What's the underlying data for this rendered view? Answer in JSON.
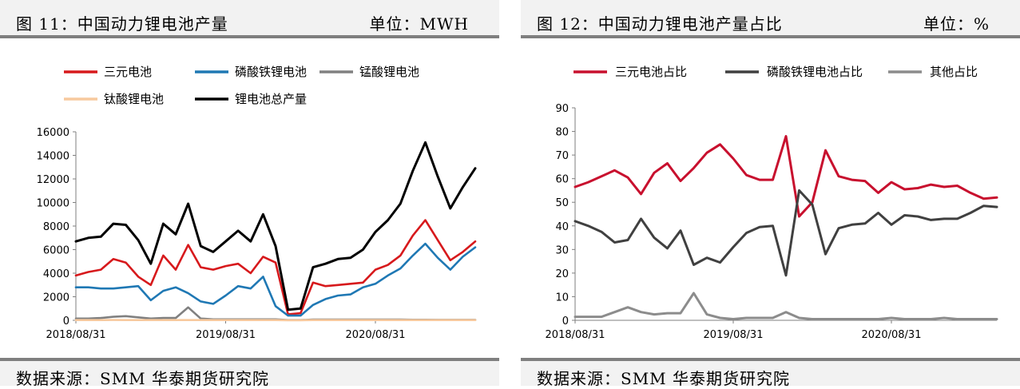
{
  "charts": [
    {
      "title": "图 11：中国动力锂电池产量",
      "unit": "单位：MWH",
      "source": "数据来源：SMM  华泰期货研究院",
      "chart_data": {
        "type": "line",
        "x": [
          "2018/08",
          "2018/09",
          "2018/10",
          "2018/11",
          "2018/12",
          "2019/01",
          "2019/02",
          "2019/03",
          "2019/04",
          "2019/05",
          "2019/06",
          "2019/07",
          "2019/08",
          "2019/09",
          "2019/10",
          "2019/11",
          "2019/12",
          "2020/01",
          "2020/02",
          "2020/03",
          "2020/04",
          "2020/05",
          "2020/06",
          "2020/07",
          "2020/08",
          "2020/09",
          "2020/10",
          "2020/11",
          "2020/12",
          "2021/01",
          "2021/02",
          "2021/03",
          "2021/04"
        ],
        "x_tick_labels": [
          "2018/08/31",
          "2019/08/31",
          "2020/08/31"
        ],
        "x_tick_indices": [
          0,
          12,
          24
        ],
        "ylim": [
          0,
          16000
        ],
        "yticks": [
          0,
          2000,
          4000,
          6000,
          8000,
          10000,
          12000,
          14000,
          16000
        ],
        "legend_rows": [
          [
            0,
            1,
            2
          ],
          [
            3,
            4
          ]
        ],
        "series": [
          {
            "name": "三元电池",
            "color": "#d7191c",
            "width": 2.6,
            "values": [
              3800,
              4100,
              4300,
              5200,
              4900,
              3700,
              3000,
              5500,
              4300,
              6400,
              4500,
              4300,
              4600,
              4800,
              4000,
              5400,
              4900,
              500,
              600,
              3200,
              2900,
              3000,
              3100,
              3200,
              4300,
              4700,
              5500,
              7200,
              8500,
              6800,
              5100,
              5800,
              6700
            ]
          },
          {
            "name": "磷酸铁锂电池",
            "color": "#1f78b4",
            "width": 2.6,
            "values": [
              2800,
              2800,
              2700,
              2700,
              2800,
              2900,
              1700,
              2500,
              2800,
              2300,
              1600,
              1400,
              2100,
              2900,
              2700,
              3700,
              1200,
              400,
              400,
              1300,
              1800,
              2100,
              2200,
              2800,
              3100,
              3800,
              4400,
              5500,
              6500,
              5300,
              4300,
              5400,
              6200
            ]
          },
          {
            "name": "锰酸锂电池",
            "color": "#808080",
            "width": 2.6,
            "values": [
              150,
              150,
              200,
              300,
              350,
              250,
              150,
              200,
              200,
              1100,
              150,
              80,
              80,
              80,
              80,
              80,
              80,
              20,
              20,
              60,
              60,
              60,
              60,
              60,
              60,
              60,
              60,
              50,
              50,
              40,
              40,
              40,
              40
            ]
          },
          {
            "name": "钛酸锂电池",
            "color": "#f7c99e",
            "width": 2.6,
            "values": [
              20,
              20,
              20,
              30,
              20,
              20,
              20,
              20,
              20,
              20,
              20,
              20,
              20,
              20,
              20,
              20,
              20,
              10,
              10,
              20,
              20,
              20,
              20,
              20,
              20,
              20,
              20,
              20,
              20,
              20,
              20,
              20,
              20
            ]
          },
          {
            "name": "锂电池总产量",
            "color": "#000000",
            "width": 3,
            "values": [
              6700,
              7000,
              7100,
              8200,
              8100,
              6800,
              4800,
              8200,
              7300,
              9900,
              6300,
              5800,
              6700,
              7600,
              6700,
              9000,
              6300,
              900,
              1000,
              4500,
              4800,
              5200,
              5300,
              6000,
              7500,
              8500,
              9900,
              12700,
              15100,
              12200,
              9500,
              11300,
              12900
            ]
          }
        ]
      }
    },
    {
      "title": "图 12：中国动力锂电池产量占比",
      "unit": "单位：%",
      "source": "数据来源：SMM  华泰期货研究院",
      "chart_data": {
        "type": "line",
        "x": [
          "2018/08",
          "2018/09",
          "2018/10",
          "2018/11",
          "2018/12",
          "2019/01",
          "2019/02",
          "2019/03",
          "2019/04",
          "2019/05",
          "2019/06",
          "2019/07",
          "2019/08",
          "2019/09",
          "2019/10",
          "2019/11",
          "2019/12",
          "2020/01",
          "2020/02",
          "2020/03",
          "2020/04",
          "2020/05",
          "2020/06",
          "2020/07",
          "2020/08",
          "2020/09",
          "2020/10",
          "2020/11",
          "2020/12",
          "2021/01",
          "2021/02",
          "2021/03",
          "2021/04"
        ],
        "x_tick_labels": [
          "2018/08/31",
          "2019/08/31",
          "2020/08/31"
        ],
        "x_tick_indices": [
          0,
          12,
          24
        ],
        "ylim": [
          0,
          90
        ],
        "yticks": [
          0,
          10,
          20,
          30,
          40,
          50,
          60,
          70,
          80,
          90
        ],
        "legend_rows": [
          [
            0,
            1,
            2
          ]
        ],
        "series": [
          {
            "name": "三元电池占比",
            "color": "#c8102e",
            "width": 3,
            "values": [
              56.5,
              58.5,
              61,
              63.5,
              60.5,
              53.5,
              62.5,
              66.5,
              59,
              64.5,
              71,
              74.5,
              68.5,
              61.5,
              59.5,
              59.5,
              78,
              44,
              50,
              72,
              61,
              59.5,
              59,
              54,
              58.5,
              55.5,
              56,
              57.5,
              56.5,
              57,
              54,
              51.5,
              52
            ]
          },
          {
            "name": "磷酸铁锂电池占比",
            "color": "#404040",
            "width": 3,
            "values": [
              42,
              40,
              37.5,
              33,
              34,
              43,
              35,
              30.5,
              38,
              23.5,
              26.5,
              24.5,
              31,
              37,
              39.5,
              40,
              19,
              55,
              49,
              28,
              39,
              40.5,
              41,
              45.5,
              40.5,
              44.5,
              44,
              42.5,
              43,
              43,
              45.5,
              48.5,
              48
            ]
          },
          {
            "name": "其他占比",
            "color": "#8c8c8c",
            "width": 3,
            "values": [
              1.5,
              1.5,
              1.5,
              3.5,
              5.5,
              3.5,
              2.5,
              3,
              3,
              11.5,
              2.5,
              1,
              0.5,
              1,
              1,
              1,
              3.5,
              1,
              0.5,
              0.5,
              0.5,
              0.5,
              0.5,
              0.5,
              1,
              0.5,
              0.5,
              0.5,
              1,
              0.5,
              0.5,
              0.5,
              0.5
            ]
          }
        ]
      }
    }
  ]
}
